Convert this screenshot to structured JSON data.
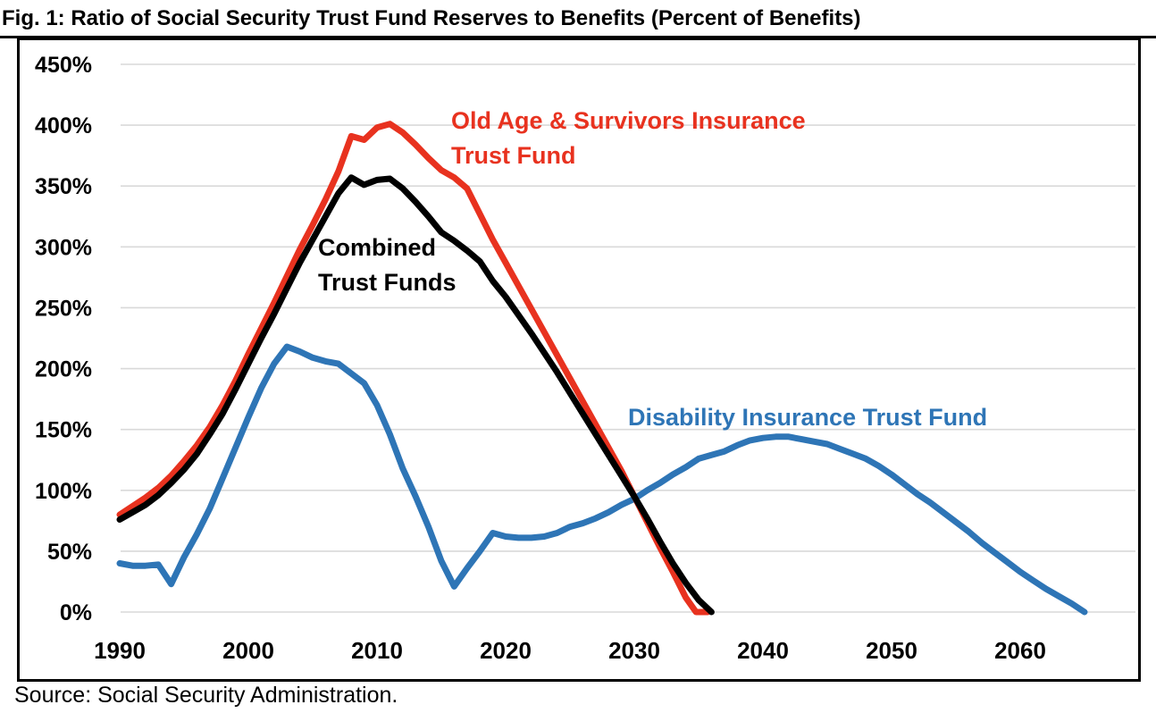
{
  "figure": {
    "title": "Fig. 1: Ratio of Social Security Trust Fund Reserves to Benefits (Percent of Benefits)",
    "source": "Source: Social Security Administration."
  },
  "chart_data": {
    "type": "line",
    "title": "Fig. 1: Ratio of Social Security Trust Fund Reserves to Benefits (Percent of Benefits)",
    "xlabel": "",
    "ylabel": "Percent of Benefits",
    "x_axis": {
      "ticks": [
        1990,
        2000,
        2010,
        2020,
        2030,
        2040,
        2050,
        2060
      ],
      "range": [
        1990,
        2066
      ]
    },
    "y_axis": {
      "tick_values": [
        0,
        50,
        100,
        150,
        200,
        250,
        300,
        350,
        400,
        450
      ],
      "tick_labels": [
        "0%",
        "50%",
        "100%",
        "150%",
        "200%",
        "250%",
        "300%",
        "350%",
        "400%",
        "450%"
      ],
      "range": [
        0,
        450
      ],
      "grid": true,
      "grid_color": "#d9d9d9"
    },
    "legend_position": "inline-annotations",
    "series": [
      {
        "id": "oasi",
        "name": "Old Age & Survivors Insurance Trust Fund",
        "color": "#e8321f",
        "points": [
          [
            1990,
            80
          ],
          [
            1991,
            87
          ],
          [
            1992,
            94
          ],
          [
            1993,
            102
          ],
          [
            1994,
            112
          ],
          [
            1995,
            124
          ],
          [
            1996,
            137
          ],
          [
            1997,
            152
          ],
          [
            1998,
            170
          ],
          [
            1999,
            190
          ],
          [
            2000,
            212
          ],
          [
            2001,
            233
          ],
          [
            2002,
            254
          ],
          [
            2003,
            276
          ],
          [
            2004,
            298
          ],
          [
            2005,
            318
          ],
          [
            2006,
            339
          ],
          [
            2007,
            362
          ],
          [
            2008,
            391
          ],
          [
            2009,
            388
          ],
          [
            2010,
            398
          ],
          [
            2011,
            401
          ],
          [
            2012,
            394
          ],
          [
            2013,
            384
          ],
          [
            2014,
            373
          ],
          [
            2015,
            363
          ],
          [
            2016,
            357
          ],
          [
            2017,
            348
          ],
          [
            2018,
            327
          ],
          [
            2019,
            306
          ],
          [
            2020,
            287
          ],
          [
            2021,
            268
          ],
          [
            2022,
            249
          ],
          [
            2023,
            230
          ],
          [
            2024,
            211
          ],
          [
            2025,
            192
          ],
          [
            2026,
            173
          ],
          [
            2027,
            154
          ],
          [
            2028,
            135
          ],
          [
            2029,
            116
          ],
          [
            2030,
            95
          ],
          [
            2031,
            74
          ],
          [
            2032,
            53
          ],
          [
            2033,
            33
          ],
          [
            2034,
            12
          ],
          [
            2034.8,
            0
          ],
          [
            2035.7,
            0
          ]
        ]
      },
      {
        "id": "combined",
        "name": "Combined Trust Funds",
        "color": "#000000",
        "points": [
          [
            1990,
            76
          ],
          [
            1991,
            82
          ],
          [
            1992,
            88
          ],
          [
            1993,
            96
          ],
          [
            1994,
            106
          ],
          [
            1995,
            117
          ],
          [
            1996,
            130
          ],
          [
            1997,
            146
          ],
          [
            1998,
            163
          ],
          [
            1999,
            183
          ],
          [
            2000,
            204
          ],
          [
            2001,
            225
          ],
          [
            2002,
            245
          ],
          [
            2003,
            266
          ],
          [
            2004,
            287
          ],
          [
            2005,
            306
          ],
          [
            2006,
            325
          ],
          [
            2007,
            344
          ],
          [
            2008,
            357
          ],
          [
            2009,
            351
          ],
          [
            2010,
            355
          ],
          [
            2011,
            356
          ],
          [
            2012,
            348
          ],
          [
            2013,
            337
          ],
          [
            2014,
            325
          ],
          [
            2015,
            312
          ],
          [
            2016,
            305
          ],
          [
            2017,
            297
          ],
          [
            2018,
            288
          ],
          [
            2019,
            272
          ],
          [
            2020,
            259
          ],
          [
            2021,
            244
          ],
          [
            2022,
            229
          ],
          [
            2023,
            213
          ],
          [
            2024,
            197
          ],
          [
            2025,
            180
          ],
          [
            2026,
            163
          ],
          [
            2027,
            146
          ],
          [
            2028,
            129
          ],
          [
            2029,
            112
          ],
          [
            2030,
            95
          ],
          [
            2031,
            77
          ],
          [
            2032,
            58
          ],
          [
            2033,
            40
          ],
          [
            2034,
            24
          ],
          [
            2035,
            10
          ],
          [
            2036,
            0
          ]
        ]
      },
      {
        "id": "di",
        "name": "Disability Insurance Trust Fund",
        "color": "#2e75b6",
        "points": [
          [
            1990,
            40
          ],
          [
            1991,
            38
          ],
          [
            1992,
            38
          ],
          [
            1993,
            39
          ],
          [
            1994,
            23
          ],
          [
            1995,
            45
          ],
          [
            1996,
            64
          ],
          [
            1997,
            85
          ],
          [
            1998,
            110
          ],
          [
            1999,
            135
          ],
          [
            2000,
            160
          ],
          [
            2001,
            184
          ],
          [
            2002,
            204
          ],
          [
            2003,
            218
          ],
          [
            2004,
            214
          ],
          [
            2005,
            209
          ],
          [
            2006,
            206
          ],
          [
            2007,
            204
          ],
          [
            2008,
            196
          ],
          [
            2009,
            188
          ],
          [
            2010,
            170
          ],
          [
            2011,
            146
          ],
          [
            2012,
            118
          ],
          [
            2013,
            95
          ],
          [
            2014,
            70
          ],
          [
            2015,
            42
          ],
          [
            2016,
            21
          ],
          [
            2017,
            36
          ],
          [
            2018,
            50
          ],
          [
            2019,
            65
          ],
          [
            2020,
            62
          ],
          [
            2021,
            61
          ],
          [
            2022,
            61
          ],
          [
            2023,
            62
          ],
          [
            2024,
            65
          ],
          [
            2025,
            70
          ],
          [
            2026,
            73
          ],
          [
            2027,
            77
          ],
          [
            2028,
            82
          ],
          [
            2029,
            88
          ],
          [
            2030,
            93
          ],
          [
            2031,
            100
          ],
          [
            2032,
            106
          ],
          [
            2033,
            113
          ],
          [
            2034,
            119
          ],
          [
            2035,
            126
          ],
          [
            2036,
            129
          ],
          [
            2037,
            132
          ],
          [
            2038,
            137
          ],
          [
            2039,
            141
          ],
          [
            2040,
            143
          ],
          [
            2041,
            144
          ],
          [
            2042,
            144
          ],
          [
            2043,
            142
          ],
          [
            2044,
            140
          ],
          [
            2045,
            138
          ],
          [
            2046,
            134
          ],
          [
            2047,
            130
          ],
          [
            2048,
            126
          ],
          [
            2049,
            120
          ],
          [
            2050,
            113
          ],
          [
            2051,
            105
          ],
          [
            2052,
            97
          ],
          [
            2053,
            90
          ],
          [
            2054,
            82
          ],
          [
            2055,
            74
          ],
          [
            2056,
            66
          ],
          [
            2057,
            57
          ],
          [
            2058,
            49
          ],
          [
            2059,
            41
          ],
          [
            2060,
            33
          ],
          [
            2061,
            26
          ],
          [
            2062,
            19
          ],
          [
            2063,
            13
          ],
          [
            2064,
            7
          ],
          [
            2065,
            0
          ]
        ]
      }
    ],
    "annotations": [
      {
        "series": "oasi",
        "lines": [
          "Old Age & Survivors Insurance",
          "Trust Fund"
        ],
        "color": "#e8321f"
      },
      {
        "series": "combined",
        "lines": [
          "Combined",
          "Trust Funds"
        ],
        "color": "#000000"
      },
      {
        "series": "di",
        "lines": [
          "Disability Insurance Trust Fund"
        ],
        "color": "#2e75b6"
      }
    ]
  }
}
